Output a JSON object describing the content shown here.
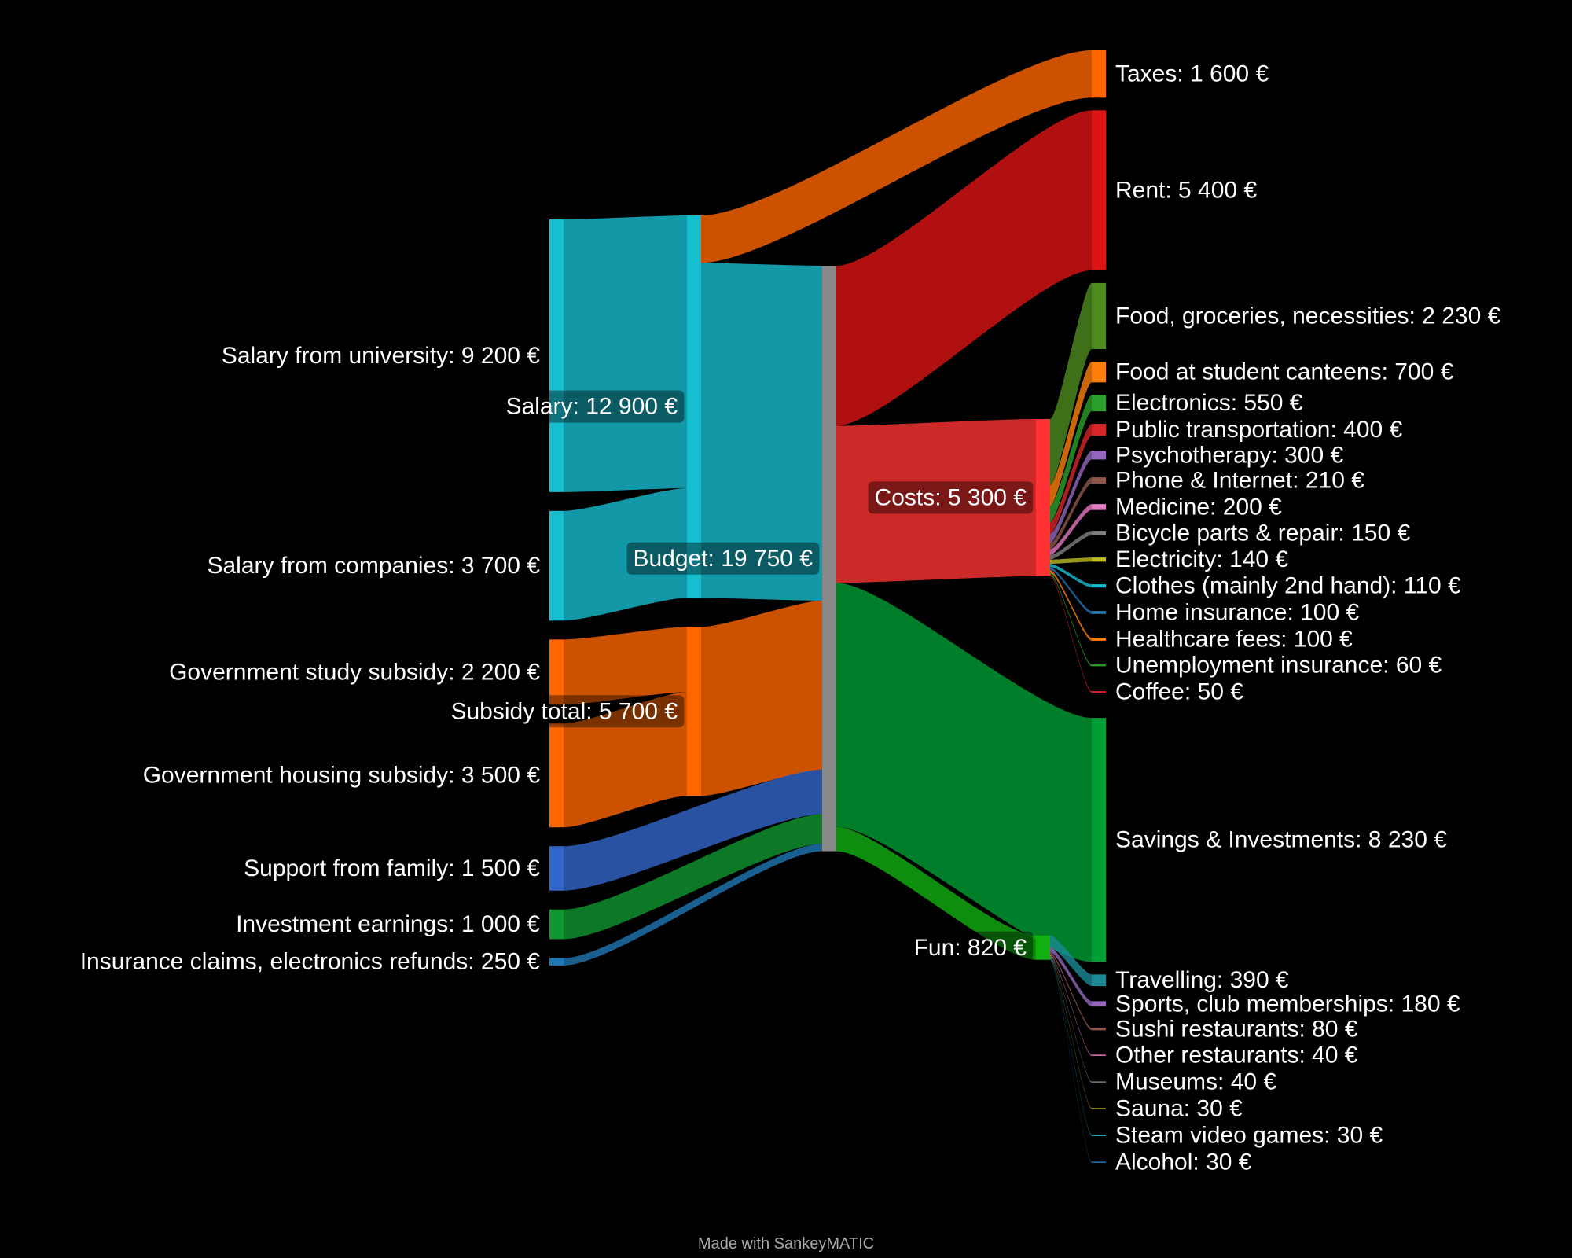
{
  "chart_data": {
    "type": "sankey",
    "credit": "Made with SankeyMATIC",
    "nodes": [
      {
        "label": "Salary from university: 9 200 €",
        "value": 9200,
        "color": "#17becf"
      },
      {
        "label": "Salary from companies: 3 700 €",
        "value": 3700,
        "color": "#17becf"
      },
      {
        "label": "Government study subsidy: 2 200 €",
        "value": 2200,
        "color": "#ff6600"
      },
      {
        "label": "Government housing subsidy: 3 500 €",
        "value": 3500,
        "color": "#ff6600"
      },
      {
        "label": "Support from family: 1 500 €",
        "value": 1500,
        "color": "#3366cc"
      },
      {
        "label": "Investment earnings: 1 000 €",
        "value": 1000,
        "color": "#109630"
      },
      {
        "label": "Insurance claims, electronics refunds: 250 €",
        "value": 250,
        "color": "#1f77b4"
      },
      {
        "label": "Salary: 12 900 €",
        "value": 12900,
        "color": "#17becf"
      },
      {
        "label": "Subsidy total: 5 700 €",
        "value": 5700,
        "color": "#ff6600"
      },
      {
        "label": "Budget: 19 750 €",
        "value": 19750,
        "color": "#888888"
      },
      {
        "label": "Taxes: 1 600 €",
        "value": 1600,
        "color": "#ff6600"
      },
      {
        "label": "Rent: 5 400 €",
        "value": 5400,
        "color": "#dd1414"
      },
      {
        "label": "Costs: 5 300 €",
        "value": 5300,
        "color": "#ff3333"
      },
      {
        "label": "Food, groceries, necessities: 2 230 €",
        "value": 2230,
        "color": "#4c8c1f"
      },
      {
        "label": "Food at student canteens: 700 €",
        "value": 700,
        "color": "#ff7f0e"
      },
      {
        "label": "Electronics: 550 €",
        "value": 550,
        "color": "#2ca02c"
      },
      {
        "label": "Public transportation: 400 €",
        "value": 400,
        "color": "#d62728"
      },
      {
        "label": "Psychotherapy: 300 €",
        "value": 300,
        "color": "#9467bd"
      },
      {
        "label": "Phone & Internet: 210 €",
        "value": 210,
        "color": "#8c564b"
      },
      {
        "label": "Medicine: 200 €",
        "value": 200,
        "color": "#e377c2"
      },
      {
        "label": "Bicycle parts & repair: 150 €",
        "value": 150,
        "color": "#7f7f7f"
      },
      {
        "label": "Electricity: 140 €",
        "value": 140,
        "color": "#bcbd22"
      },
      {
        "label": "Clothes (mainly 2nd hand): 110 €",
        "value": 110,
        "color": "#17becf"
      },
      {
        "label": "Home insurance: 100 €",
        "value": 100,
        "color": "#1f77b4"
      },
      {
        "label": "Healthcare fees: 100 €",
        "value": 100,
        "color": "#ff7f0e"
      },
      {
        "label": "Unemployment insurance: 60 €",
        "value": 60,
        "color": "#2ca02c"
      },
      {
        "label": "Coffee: 50 €",
        "value": 50,
        "color": "#d62728"
      },
      {
        "label": "Savings & Investments: 8 230 €",
        "value": 8230,
        "color": "#009e35"
      },
      {
        "label": "Fun: 820 €",
        "value": 820,
        "color": "#11b011"
      },
      {
        "label": "Travelling: 390 €",
        "value": 390,
        "color": "#1a8a96"
      },
      {
        "label": "Sports, club memberships: 180 €",
        "value": 180,
        "color": "#9467bd"
      },
      {
        "label": "Sushi restaurants: 80 €",
        "value": 80,
        "color": "#8c564b"
      },
      {
        "label": "Other restaurants: 40 €",
        "value": 40,
        "color": "#e377c2"
      },
      {
        "label": "Museums: 40 €",
        "value": 40,
        "color": "#7f7f7f"
      },
      {
        "label": "Sauna: 30 €",
        "value": 30,
        "color": "#bcbd22"
      },
      {
        "label": "Steam video games: 30 €",
        "value": 30,
        "color": "#17becf"
      },
      {
        "label": "Alcohol: 30 €",
        "value": 30,
        "color": "#1f77b4"
      }
    ],
    "links": [
      {
        "source": 0,
        "target": 7,
        "value": 9200,
        "color": "#17becf"
      },
      {
        "source": 1,
        "target": 7,
        "value": 3700,
        "color": "#17becf"
      },
      {
        "source": 2,
        "target": 8,
        "value": 2200,
        "color": "#ff6600"
      },
      {
        "source": 3,
        "target": 8,
        "value": 3500,
        "color": "#ff6600"
      },
      {
        "source": 7,
        "target": 10,
        "value": 1600,
        "color": "#ff6600"
      },
      {
        "source": 7,
        "target": 9,
        "value": 11300,
        "color": "#17becf"
      },
      {
        "source": 8,
        "target": 9,
        "value": 5700,
        "color": "#ff6600"
      },
      {
        "source": 4,
        "target": 9,
        "value": 1500,
        "color": "#3366cc"
      },
      {
        "source": 5,
        "target": 9,
        "value": 1000,
        "color": "#109630"
      },
      {
        "source": 6,
        "target": 9,
        "value": 250,
        "color": "#1f77b4"
      },
      {
        "source": 9,
        "target": 11,
        "value": 5400,
        "color": "#dd1414"
      },
      {
        "source": 9,
        "target": 12,
        "value": 5300,
        "color": "#ff3333"
      },
      {
        "source": 9,
        "target": 27,
        "value": 8230,
        "color": "#009e35"
      },
      {
        "source": 9,
        "target": 28,
        "value": 820,
        "color": "#11b011"
      },
      {
        "source": 12,
        "target": 13,
        "value": 2230,
        "color": "#4c8c1f"
      },
      {
        "source": 12,
        "target": 14,
        "value": 700,
        "color": "#ff7f0e"
      },
      {
        "source": 12,
        "target": 15,
        "value": 550,
        "color": "#2ca02c"
      },
      {
        "source": 12,
        "target": 16,
        "value": 400,
        "color": "#d62728"
      },
      {
        "source": 12,
        "target": 17,
        "value": 300,
        "color": "#9467bd"
      },
      {
        "source": 12,
        "target": 18,
        "value": 210,
        "color": "#8c564b"
      },
      {
        "source": 12,
        "target": 19,
        "value": 200,
        "color": "#e377c2"
      },
      {
        "source": 12,
        "target": 20,
        "value": 150,
        "color": "#7f7f7f"
      },
      {
        "source": 12,
        "target": 21,
        "value": 140,
        "color": "#bcbd22"
      },
      {
        "source": 12,
        "target": 22,
        "value": 110,
        "color": "#17becf"
      },
      {
        "source": 12,
        "target": 23,
        "value": 100,
        "color": "#1f77b4"
      },
      {
        "source": 12,
        "target": 24,
        "value": 100,
        "color": "#ff7f0e"
      },
      {
        "source": 12,
        "target": 25,
        "value": 60,
        "color": "#2ca02c"
      },
      {
        "source": 12,
        "target": 26,
        "value": 50,
        "color": "#d62728"
      },
      {
        "source": 28,
        "target": 29,
        "value": 390,
        "color": "#1a8a96"
      },
      {
        "source": 28,
        "target": 30,
        "value": 180,
        "color": "#9467bd"
      },
      {
        "source": 28,
        "target": 31,
        "value": 80,
        "color": "#8c564b"
      },
      {
        "source": 28,
        "target": 32,
        "value": 40,
        "color": "#e377c2"
      },
      {
        "source": 28,
        "target": 33,
        "value": 40,
        "color": "#7f7f7f"
      },
      {
        "source": 28,
        "target": 34,
        "value": 30,
        "color": "#bcbd22"
      },
      {
        "source": 28,
        "target": 35,
        "value": 30,
        "color": "#17becf"
      },
      {
        "source": 28,
        "target": 36,
        "value": 30,
        "color": "#1f77b4"
      }
    ]
  }
}
